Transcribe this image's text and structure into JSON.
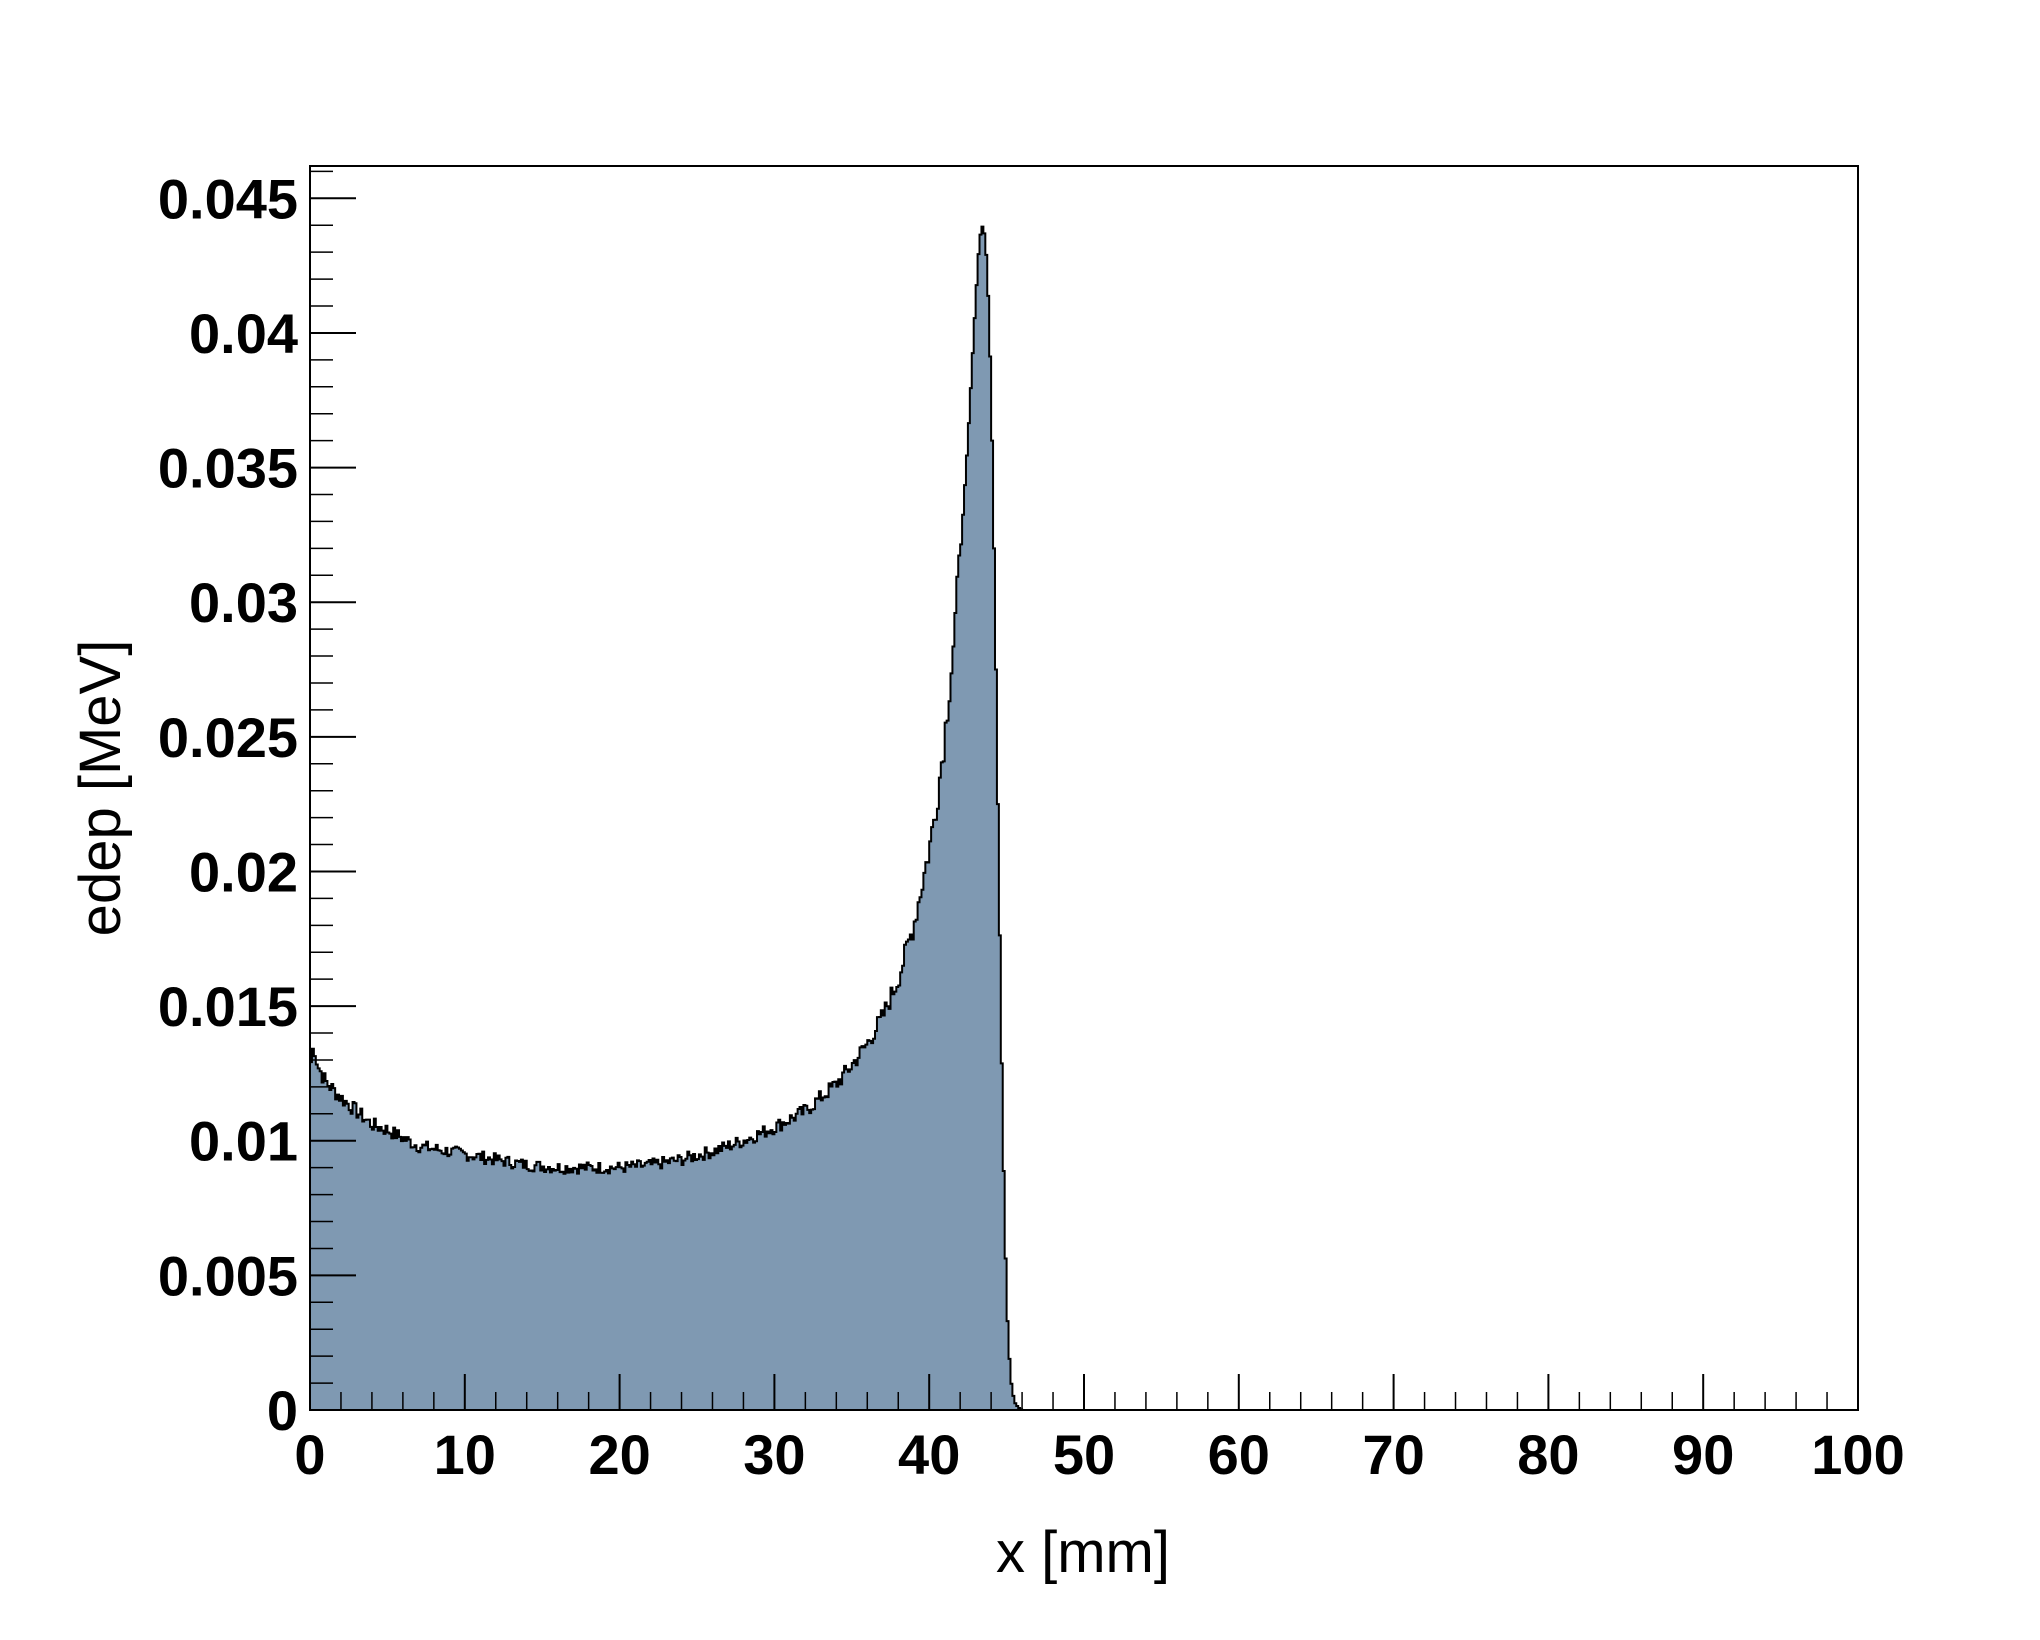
{
  "chart_data": {
    "type": "histogram",
    "title": "",
    "xlabel": "x [mm]",
    "ylabel": "edep [MeV]",
    "xlim": [
      0,
      100
    ],
    "ylim": [
      0,
      0.0462
    ],
    "x_ticks": [
      "0",
      "10",
      "20",
      "30",
      "40",
      "50",
      "60",
      "70",
      "80",
      "90",
      "100"
    ],
    "y_ticks": [
      "0",
      "0.005",
      "0.01",
      "0.015",
      "0.02",
      "0.025",
      "0.03",
      "0.035",
      "0.04",
      "0.045"
    ],
    "legend": "none",
    "grid": false,
    "colors": {
      "fill": "#7f99b2",
      "line": "#000000",
      "frame": "#000000"
    },
    "series": [
      {
        "x": [
          0,
          0.25,
          0.5,
          1,
          2,
          3,
          4,
          5,
          6,
          7,
          8,
          9,
          10,
          12,
          14,
          16,
          18,
          20,
          22,
          24,
          26,
          28,
          30,
          32,
          34,
          35,
          36,
          37,
          38,
          39,
          40,
          40.5,
          41,
          41.5,
          42,
          42.5,
          43,
          43.25,
          43.5,
          43.75,
          44,
          44.25,
          44.5,
          44.75,
          45,
          45.25,
          45.5,
          45.75,
          46,
          50,
          100
        ],
        "values": [
          0.0127,
          0.0136,
          0.0128,
          0.0122,
          0.0116,
          0.0111,
          0.0106,
          0.0104,
          0.0101,
          0.0098,
          0.0097,
          0.0096,
          0.0095,
          0.0093,
          0.0091,
          0.009,
          0.009,
          0.009,
          0.0091,
          0.0093,
          0.0096,
          0.01,
          0.0105,
          0.0111,
          0.0121,
          0.0128,
          0.0136,
          0.0146,
          0.016,
          0.018,
          0.0208,
          0.0226,
          0.025,
          0.028,
          0.0316,
          0.036,
          0.0412,
          0.0435,
          0.0441,
          0.0425,
          0.038,
          0.03,
          0.02,
          0.0105,
          0.004,
          0.0012,
          0.0003,
          0.0001,
          0.0,
          0.0,
          0.0
        ]
      }
    ]
  }
}
